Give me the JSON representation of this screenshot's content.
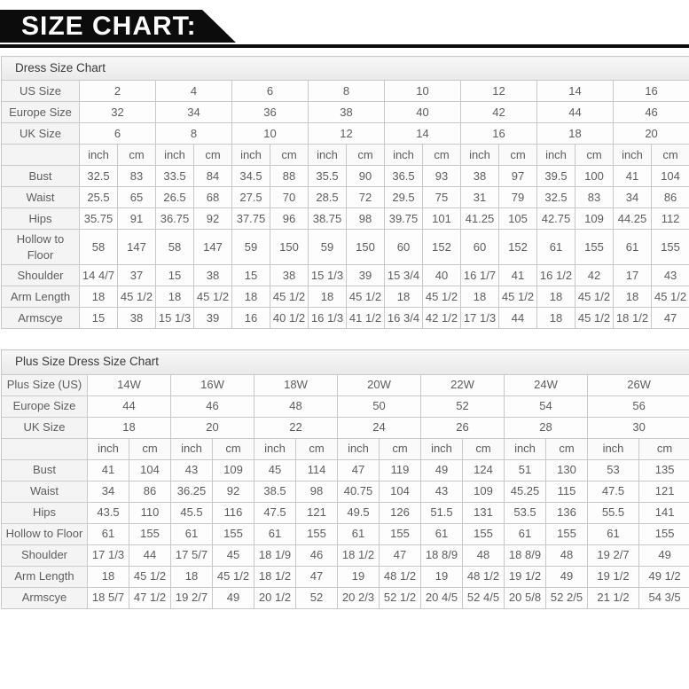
{
  "banner": {
    "title": "SIZE CHART:"
  },
  "colors": {
    "banner_bg": "#0c0c0c",
    "banner_text": "#ffffff",
    "table_border": "#c9c9c9",
    "caption_bg": "#efefef",
    "label_bg": "#f4f4f4",
    "cell_bg": "#fdfdfd",
    "text": "#5d5d5d"
  },
  "tables": [
    {
      "caption": "Dress Size Chart",
      "unit_labels": [
        "inch",
        "cm"
      ],
      "size_rows": [
        {
          "label": "US Size",
          "sizes": [
            "2",
            "4",
            "6",
            "8",
            "10",
            "12",
            "14",
            "16"
          ]
        },
        {
          "label": "Europe Size",
          "sizes": [
            "32",
            "34",
            "36",
            "38",
            "40",
            "42",
            "44",
            "46"
          ]
        },
        {
          "label": "UK Size",
          "sizes": [
            "6",
            "8",
            "10",
            "12",
            "14",
            "16",
            "18",
            "20"
          ]
        }
      ],
      "measurement_rows": [
        {
          "label": "Bust",
          "cells": [
            "32.5",
            "83",
            "33.5",
            "84",
            "34.5",
            "88",
            "35.5",
            "90",
            "36.5",
            "93",
            "38",
            "97",
            "39.5",
            "100",
            "41",
            "104"
          ]
        },
        {
          "label": "Waist",
          "cells": [
            "25.5",
            "65",
            "26.5",
            "68",
            "27.5",
            "70",
            "28.5",
            "72",
            "29.5",
            "75",
            "31",
            "79",
            "32.5",
            "83",
            "34",
            "86"
          ]
        },
        {
          "label": "Hips",
          "cells": [
            "35.75",
            "91",
            "36.75",
            "92",
            "37.75",
            "96",
            "38.75",
            "98",
            "39.75",
            "101",
            "41.25",
            "105",
            "42.75",
            "109",
            "44.25",
            "112"
          ]
        },
        {
          "label": "Hollow to Floor",
          "cells": [
            "58",
            "147",
            "58",
            "147",
            "59",
            "150",
            "59",
            "150",
            "60",
            "152",
            "60",
            "152",
            "61",
            "155",
            "61",
            "155"
          ]
        },
        {
          "label": "Shoulder",
          "cells": [
            "14 4/7",
            "37",
            "15",
            "38",
            "15",
            "38",
            "15 1/3",
            "39",
            "15 3/4",
            "40",
            "16 1/7",
            "41",
            "16 1/2",
            "42",
            "17",
            "43"
          ]
        },
        {
          "label": "Arm Length",
          "cells": [
            "18",
            "45 1/2",
            "18",
            "45 1/2",
            "18",
            "45 1/2",
            "18",
            "45 1/2",
            "18",
            "45 1/2",
            "18",
            "45 1/2",
            "18",
            "45 1/2",
            "18",
            "45 1/2"
          ]
        },
        {
          "label": "Armscye",
          "cells": [
            "15",
            "38",
            "15 1/3",
            "39",
            "16",
            "40 1/2",
            "16 1/3",
            "41 1/2",
            "16 3/4",
            "42 1/2",
            "17 1/3",
            "44",
            "18",
            "45 1/2",
            "18 1/2",
            "47"
          ]
        }
      ]
    },
    {
      "caption": "Plus Size Dress Size Chart",
      "unit_labels": [
        "inch",
        "cm"
      ],
      "size_rows": [
        {
          "label": "Plus Size (US)",
          "sizes": [
            "14W",
            "16W",
            "18W",
            "20W",
            "22W",
            "24W",
            "26W"
          ]
        },
        {
          "label": "Europe Size",
          "sizes": [
            "44",
            "46",
            "48",
            "50",
            "52",
            "54",
            "56"
          ]
        },
        {
          "label": "UK Size",
          "sizes": [
            "18",
            "20",
            "22",
            "24",
            "26",
            "28",
            "30"
          ]
        }
      ],
      "measurement_rows": [
        {
          "label": "Bust",
          "cells": [
            "41",
            "104",
            "43",
            "109",
            "45",
            "114",
            "47",
            "119",
            "49",
            "124",
            "51",
            "130",
            "53",
            "135"
          ]
        },
        {
          "label": "Waist",
          "cells": [
            "34",
            "86",
            "36.25",
            "92",
            "38.5",
            "98",
            "40.75",
            "104",
            "43",
            "109",
            "45.25",
            "115",
            "47.5",
            "121"
          ]
        },
        {
          "label": "Hips",
          "cells": [
            "43.5",
            "110",
            "45.5",
            "116",
            "47.5",
            "121",
            "49.5",
            "126",
            "51.5",
            "131",
            "53.5",
            "136",
            "55.5",
            "141"
          ]
        },
        {
          "label": "Hollow to Floor",
          "cells": [
            "61",
            "155",
            "61",
            "155",
            "61",
            "155",
            "61",
            "155",
            "61",
            "155",
            "61",
            "155",
            "61",
            "155"
          ]
        },
        {
          "label": "Shoulder",
          "cells": [
            "17 1/3",
            "44",
            "17 5/7",
            "45",
            "18 1/9",
            "46",
            "18 1/2",
            "47",
            "18 8/9",
            "48",
            "18 8/9",
            "48",
            "19 2/7",
            "49"
          ]
        },
        {
          "label": "Arm Length",
          "cells": [
            "18",
            "45 1/2",
            "18",
            "45 1/2",
            "18 1/2",
            "47",
            "19",
            "48 1/2",
            "19",
            "48 1/2",
            "19 1/2",
            "49",
            "19 1/2",
            "49 1/2"
          ]
        },
        {
          "label": "Armscye",
          "cells": [
            "18 5/7",
            "47 1/2",
            "19 2/7",
            "49",
            "20 1/2",
            "52",
            "20 2/3",
            "52 1/2",
            "20 4/5",
            "52 4/5",
            "20 5/8",
            "52 2/5",
            "21 1/2",
            "54 3/5"
          ]
        }
      ]
    }
  ]
}
